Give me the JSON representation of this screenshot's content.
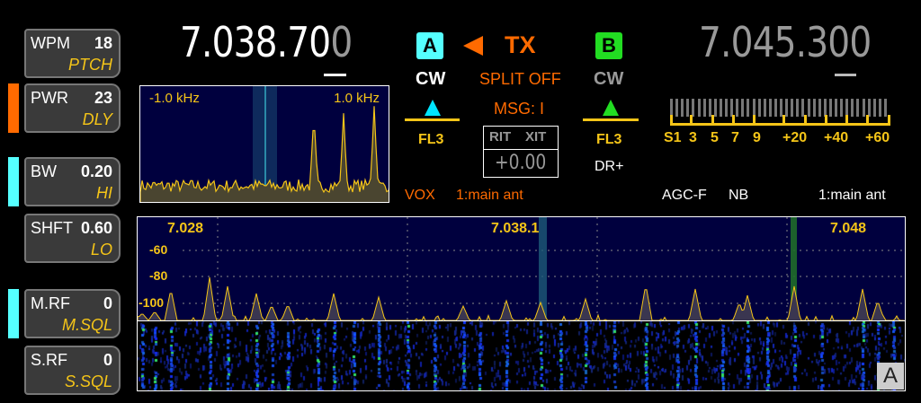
{
  "left_controls": [
    {
      "label": "WPM",
      "value": "18",
      "sub": "PTCH"
    },
    {
      "label": "PWR",
      "value": "23",
      "sub": "DLY"
    },
    {
      "label": "BW",
      "value": "0.20",
      "sub": "HI"
    },
    {
      "label": "SHFT",
      "value": "0.60",
      "sub": "LO"
    },
    {
      "label": "M.RF",
      "value": "0",
      "sub": "M.SQL"
    },
    {
      "label": "S.RF",
      "value": "0",
      "sub": "S.SQL"
    }
  ],
  "indicator_colors": {
    "pwr": "#ff6a00",
    "bw": "#55ffff",
    "mrf": "#55ffff"
  },
  "vfo_a": {
    "badge": "A",
    "freq_main": "7.038.70",
    "freq_dim": "0",
    "mode": "CW",
    "filter": "FL3",
    "color": "#55ffff"
  },
  "vfo_b": {
    "badge": "B",
    "freq": "7.045.300",
    "mode": "CW",
    "filter": "FL3",
    "extra": "DR+",
    "color": "#22dd22"
  },
  "tx": {
    "arrow_icon": "left-triangle-icon",
    "label": "TX",
    "split": "SPLIT OFF",
    "msg": "MSG: I"
  },
  "rit_xit": {
    "rit": "RIT",
    "xit": "XIT",
    "offset": "+0.00"
  },
  "mini_scope": {
    "left": "-1.0 kHz",
    "right": "1.0 kHz"
  },
  "status_a": {
    "vox": "VOX",
    "antenna": "1:main ant"
  },
  "status_b": {
    "agc": "AGC-F",
    "nb": "NB",
    "antenna": "1:main ant"
  },
  "s_meter": {
    "scale": [
      "S1",
      "3",
      "5",
      "7",
      "9",
      "+20",
      "+40",
      "+60"
    ]
  },
  "panadapter": {
    "freq_labels": [
      "7.028",
      "7.038.1",
      "7.048"
    ],
    "db_labels": [
      "-60",
      "-80",
      "-100"
    ],
    "badge": "A"
  }
}
